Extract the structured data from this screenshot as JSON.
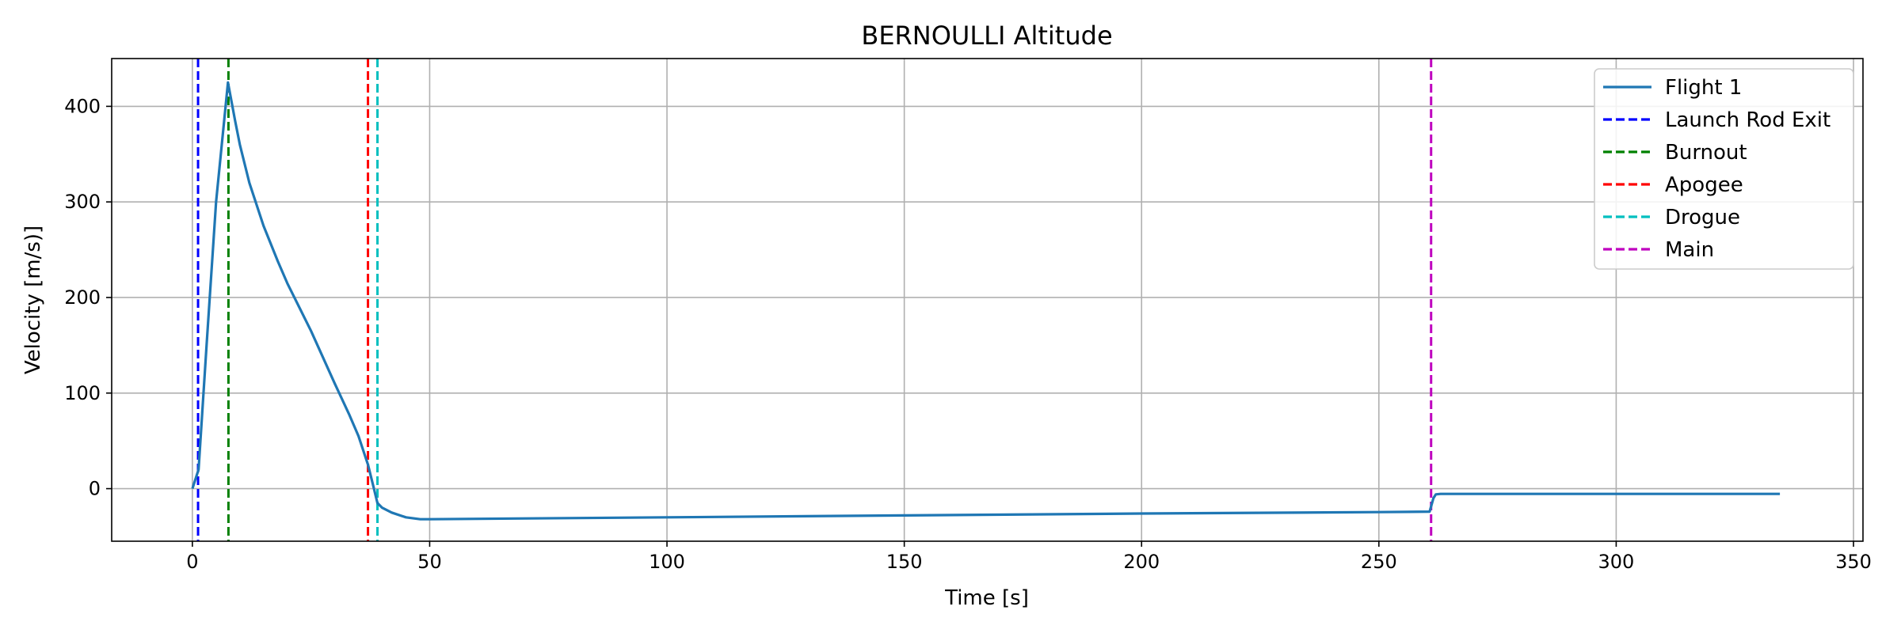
{
  "chart_data": {
    "type": "line",
    "title": "BERNOULLI Altitude",
    "xlabel": "Time [s]",
    "ylabel": "Velocity [m/s)]",
    "xlim": [
      -17,
      352
    ],
    "ylim": [
      -55,
      450
    ],
    "xticks": [
      0,
      50,
      100,
      150,
      200,
      250,
      300,
      350
    ],
    "yticks": [
      0,
      100,
      200,
      300,
      400
    ],
    "grid": true,
    "legend_position": "top-right",
    "series": [
      {
        "name": "Flight 1",
        "color": "#1f77b4",
        "style": "solid",
        "points": [
          [
            0,
            0
          ],
          [
            1.3,
            20
          ],
          [
            3,
            150
          ],
          [
            5,
            300
          ],
          [
            7.5,
            425
          ],
          [
            9,
            385
          ],
          [
            10,
            360
          ],
          [
            12,
            320
          ],
          [
            15,
            275
          ],
          [
            18,
            238
          ],
          [
            20,
            215
          ],
          [
            25,
            165
          ],
          [
            30,
            110
          ],
          [
            33,
            78
          ],
          [
            35,
            55
          ],
          [
            37,
            25
          ],
          [
            38,
            5
          ],
          [
            39,
            -15
          ],
          [
            40,
            -20
          ],
          [
            42,
            -25
          ],
          [
            45,
            -30
          ],
          [
            48,
            -32
          ],
          [
            50,
            -32
          ],
          [
            100,
            -30
          ],
          [
            150,
            -28
          ],
          [
            200,
            -26
          ],
          [
            250,
            -24.5
          ],
          [
            260.7,
            -24
          ],
          [
            261.5,
            -10
          ],
          [
            262,
            -6
          ],
          [
            263,
            -5.5
          ],
          [
            300,
            -5.5
          ],
          [
            334.5,
            -5.5
          ]
        ]
      }
    ],
    "events": [
      {
        "name": "Launch Rod Exit",
        "x": 1.2,
        "color": "#0000ff",
        "style": "dashed"
      },
      {
        "name": "Burnout",
        "x": 7.6,
        "color": "#008000",
        "style": "dashed"
      },
      {
        "name": "Apogee",
        "x": 37,
        "color": "#ff0000",
        "style": "dashed"
      },
      {
        "name": "Drogue",
        "x": 39,
        "color": "#00bfbf",
        "style": "dashed"
      },
      {
        "name": "Main",
        "x": 261,
        "color": "#bf00bf",
        "style": "dashed"
      }
    ]
  }
}
